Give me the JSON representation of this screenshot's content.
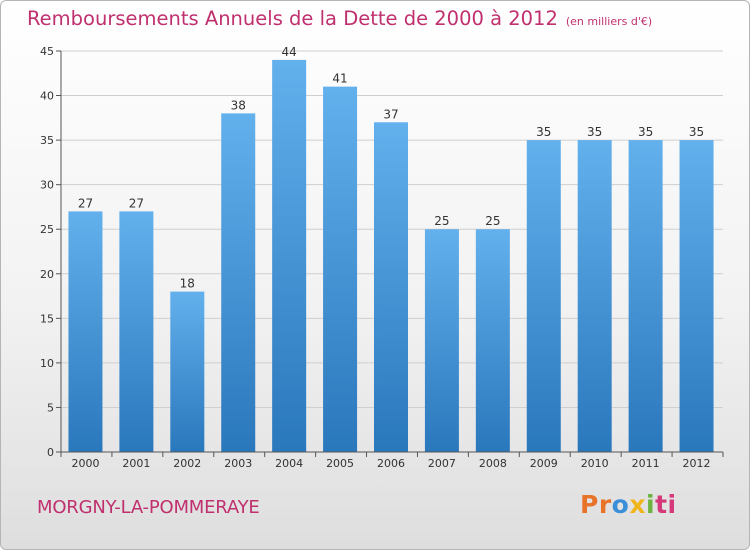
{
  "title": "Remboursements Annuels de la Dette de 2000 à 2012",
  "subtitle": "(en milliers d'€)",
  "place_name": "MORGNY-LA-POMMERAYE",
  "logo": {
    "part1": "Pr",
    "part2": "o",
    "part3": "x",
    "part4": "i",
    "part5": "ti"
  },
  "colors": {
    "title": "#c0306e",
    "bar_top": "#62b0ec",
    "bar_bottom": "#2a78bc",
    "grid": "#cfcfcf"
  },
  "chart_data": {
    "type": "bar",
    "categories": [
      "2000",
      "2001",
      "2002",
      "2003",
      "2004",
      "2005",
      "2006",
      "2007",
      "2008",
      "2009",
      "2010",
      "2011",
      "2012"
    ],
    "values": [
      27,
      27,
      18,
      38,
      44,
      41,
      37,
      25,
      25,
      35,
      35,
      35,
      35
    ],
    "title": "Remboursements Annuels de la Dette de 2000 à 2012",
    "subtitle": "(en milliers d'€)",
    "xlabel": "",
    "ylabel": "",
    "ylim": [
      0,
      45
    ],
    "yticks": [
      0,
      5,
      10,
      15,
      20,
      25,
      30,
      35,
      40,
      45
    ],
    "grid": true,
    "data_labels": true
  }
}
